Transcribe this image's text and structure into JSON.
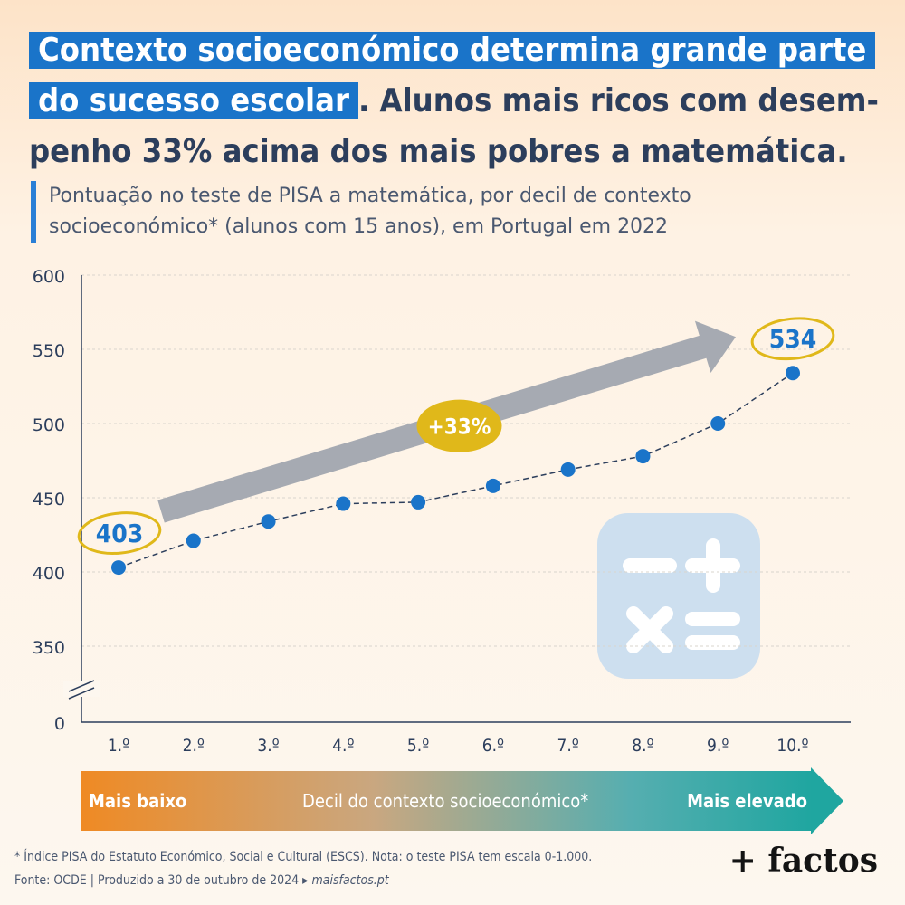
{
  "title": {
    "highlight_line1": "Contexto socioeconómico determina grande parte",
    "highlight_line2": "do sucesso escolar",
    "rest": ". Alunos mais ricos com desem-penho 33% acima dos mais pobres a matemática."
  },
  "subtitle": "Pontuação no teste de PISA a matemática, por decil de contexto socioeconómico* (alunos com 15 anos), em Portugal em 2022",
  "chart_data": {
    "type": "line",
    "categories": [
      "1.º",
      "2.º",
      "3.º",
      "4.º",
      "5.º",
      "6.º",
      "7.º",
      "8.º",
      "9.º",
      "10.º"
    ],
    "values": [
      403,
      421,
      434,
      446,
      447,
      458,
      469,
      478,
      500,
      534
    ],
    "y_ticks": [
      0,
      350,
      400,
      450,
      500,
      550,
      600
    ],
    "y_axis_break": true,
    "ylim": [
      300,
      600
    ],
    "grid": true,
    "marker_color": "#1a74c9",
    "annotations": [
      {
        "text": "403",
        "category": "1.º"
      },
      {
        "text": "534",
        "category": "10.º"
      },
      {
        "text": "+33%",
        "type": "arrow",
        "from": "1.º",
        "to": "10.º"
      }
    ]
  },
  "axis_band": {
    "low": "Mais baixo",
    "label": "Decil do contexto socioeconómico*",
    "high": "Mais elevado"
  },
  "footnote": {
    "note": "* Índice PISA do Estatuto Económico, Social e Cultural (ESCS). Nota: o teste PISA tem escala 0-1.000.",
    "source": "Fonte: OCDE | Produzido a 30 de outubro de 2024 ▸ ",
    "url": "maisfactos.pt"
  },
  "logo": "+ factos",
  "icons": {
    "calculator": "calculator-icon"
  },
  "colors": {
    "accent": "#1a74c9",
    "annotation": "#e0b81a",
    "arrow": "#a6aab2"
  }
}
